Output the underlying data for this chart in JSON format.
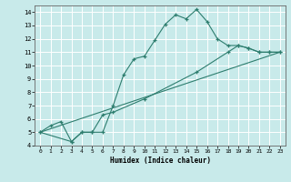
{
  "xlabel": "Humidex (Indice chaleur)",
  "bg_color": "#c8eaea",
  "grid_color": "#ffffff",
  "line_color": "#2d7d6e",
  "xlim": [
    -0.5,
    23.5
  ],
  "ylim": [
    4,
    14.5
  ],
  "xticks": [
    0,
    1,
    2,
    3,
    4,
    5,
    6,
    7,
    8,
    9,
    10,
    11,
    12,
    13,
    14,
    15,
    16,
    17,
    18,
    19,
    20,
    21,
    22,
    23
  ],
  "yticks": [
    4,
    5,
    6,
    7,
    8,
    9,
    10,
    11,
    12,
    13,
    14
  ],
  "line1_x": [
    0,
    1,
    2,
    3,
    4,
    5,
    6,
    7,
    8,
    9,
    10,
    11,
    12,
    13,
    14,
    15,
    16,
    17,
    18,
    19,
    20,
    21,
    22,
    23
  ],
  "line1_y": [
    5.0,
    5.5,
    5.8,
    4.3,
    5.0,
    5.0,
    5.0,
    7.0,
    9.3,
    10.5,
    10.7,
    11.9,
    13.1,
    13.8,
    13.5,
    14.2,
    13.3,
    12.0,
    11.5,
    11.5,
    11.3,
    11.0,
    11.0,
    11.0
  ],
  "line2_x": [
    0,
    3,
    4,
    5,
    6,
    7,
    10,
    15,
    18,
    19,
    20,
    21,
    22,
    23
  ],
  "line2_y": [
    5.0,
    4.3,
    5.0,
    5.0,
    6.3,
    6.5,
    7.5,
    9.5,
    11.0,
    11.5,
    11.3,
    11.0,
    11.0,
    11.0
  ],
  "line3_x": [
    0,
    23
  ],
  "line3_y": [
    5.0,
    11.0
  ]
}
